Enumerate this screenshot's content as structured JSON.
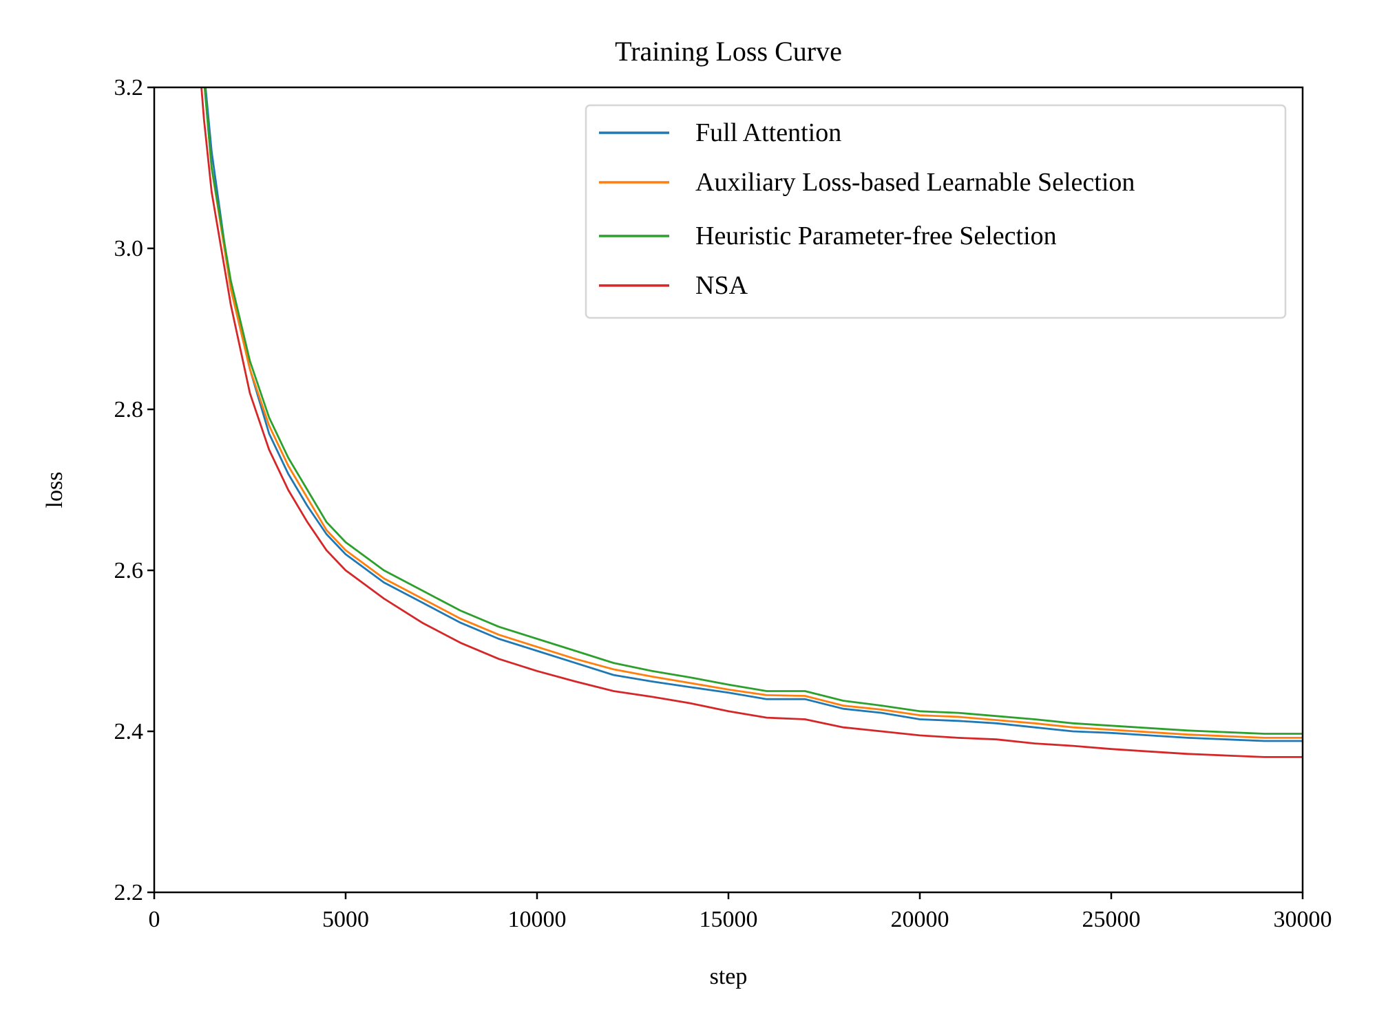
{
  "chart_data": {
    "type": "line",
    "title": "Training Loss Curve",
    "xlabel": "step",
    "ylabel": "loss",
    "xlim": [
      0,
      30000
    ],
    "ylim": [
      2.2,
      3.2
    ],
    "xticks": [
      "0",
      "5000",
      "10000",
      "15000",
      "20000",
      "25000",
      "30000"
    ],
    "yticks": [
      "2.2",
      "2.4",
      "2.6",
      "2.8",
      "3.0",
      "3.2"
    ],
    "grid": false,
    "legend_position": "top-right",
    "x": [
      1200,
      1300,
      1500,
      2000,
      2500,
      3000,
      3500,
      4000,
      4500,
      5000,
      6000,
      7000,
      8000,
      9000,
      10000,
      11000,
      12000,
      13000,
      14000,
      15000,
      16000,
      17000,
      18000,
      19000,
      20000,
      21000,
      22000,
      23000,
      24000,
      25000,
      26000,
      27000,
      28000,
      29000,
      30000
    ],
    "series": [
      {
        "name": "Full Attention",
        "color": "#1f77b4",
        "values": [
          3.3,
          3.22,
          3.12,
          2.95,
          2.85,
          2.77,
          2.72,
          2.68,
          2.645,
          2.62,
          2.585,
          2.56,
          2.535,
          2.515,
          2.5,
          2.485,
          2.47,
          2.462,
          2.455,
          2.448,
          2.44,
          2.44,
          2.428,
          2.423,
          2.415,
          2.413,
          2.41,
          2.405,
          2.4,
          2.398,
          2.395,
          2.392,
          2.39,
          2.388,
          2.388
        ]
      },
      {
        "name": "Auxiliary Loss-based Learnable Selection",
        "color": "#ff7f0e",
        "values": [
          3.3,
          3.21,
          3.1,
          2.95,
          2.85,
          2.78,
          2.73,
          2.69,
          2.65,
          2.625,
          2.59,
          2.565,
          2.54,
          2.52,
          2.505,
          2.49,
          2.477,
          2.468,
          2.46,
          2.452,
          2.445,
          2.444,
          2.432,
          2.427,
          2.42,
          2.418,
          2.414,
          2.41,
          2.405,
          2.402,
          2.399,
          2.396,
          2.394,
          2.392,
          2.392
        ]
      },
      {
        "name": "Heuristic Parameter-free Selection",
        "color": "#2ca02c",
        "values": [
          3.3,
          3.21,
          3.1,
          2.96,
          2.86,
          2.79,
          2.74,
          2.7,
          2.66,
          2.635,
          2.6,
          2.575,
          2.55,
          2.53,
          2.515,
          2.5,
          2.485,
          2.475,
          2.467,
          2.458,
          2.45,
          2.45,
          2.438,
          2.432,
          2.425,
          2.423,
          2.419,
          2.415,
          2.41,
          2.407,
          2.404,
          2.401,
          2.399,
          2.397,
          2.397
        ]
      },
      {
        "name": "NSA",
        "color": "#d62728",
        "values": [
          3.22,
          3.16,
          3.07,
          2.93,
          2.82,
          2.75,
          2.7,
          2.66,
          2.625,
          2.6,
          2.565,
          2.535,
          2.51,
          2.49,
          2.475,
          2.462,
          2.45,
          2.443,
          2.435,
          2.425,
          2.417,
          2.415,
          2.405,
          2.4,
          2.395,
          2.392,
          2.39,
          2.385,
          2.382,
          2.378,
          2.375,
          2.372,
          2.37,
          2.368,
          2.368
        ]
      }
    ]
  }
}
